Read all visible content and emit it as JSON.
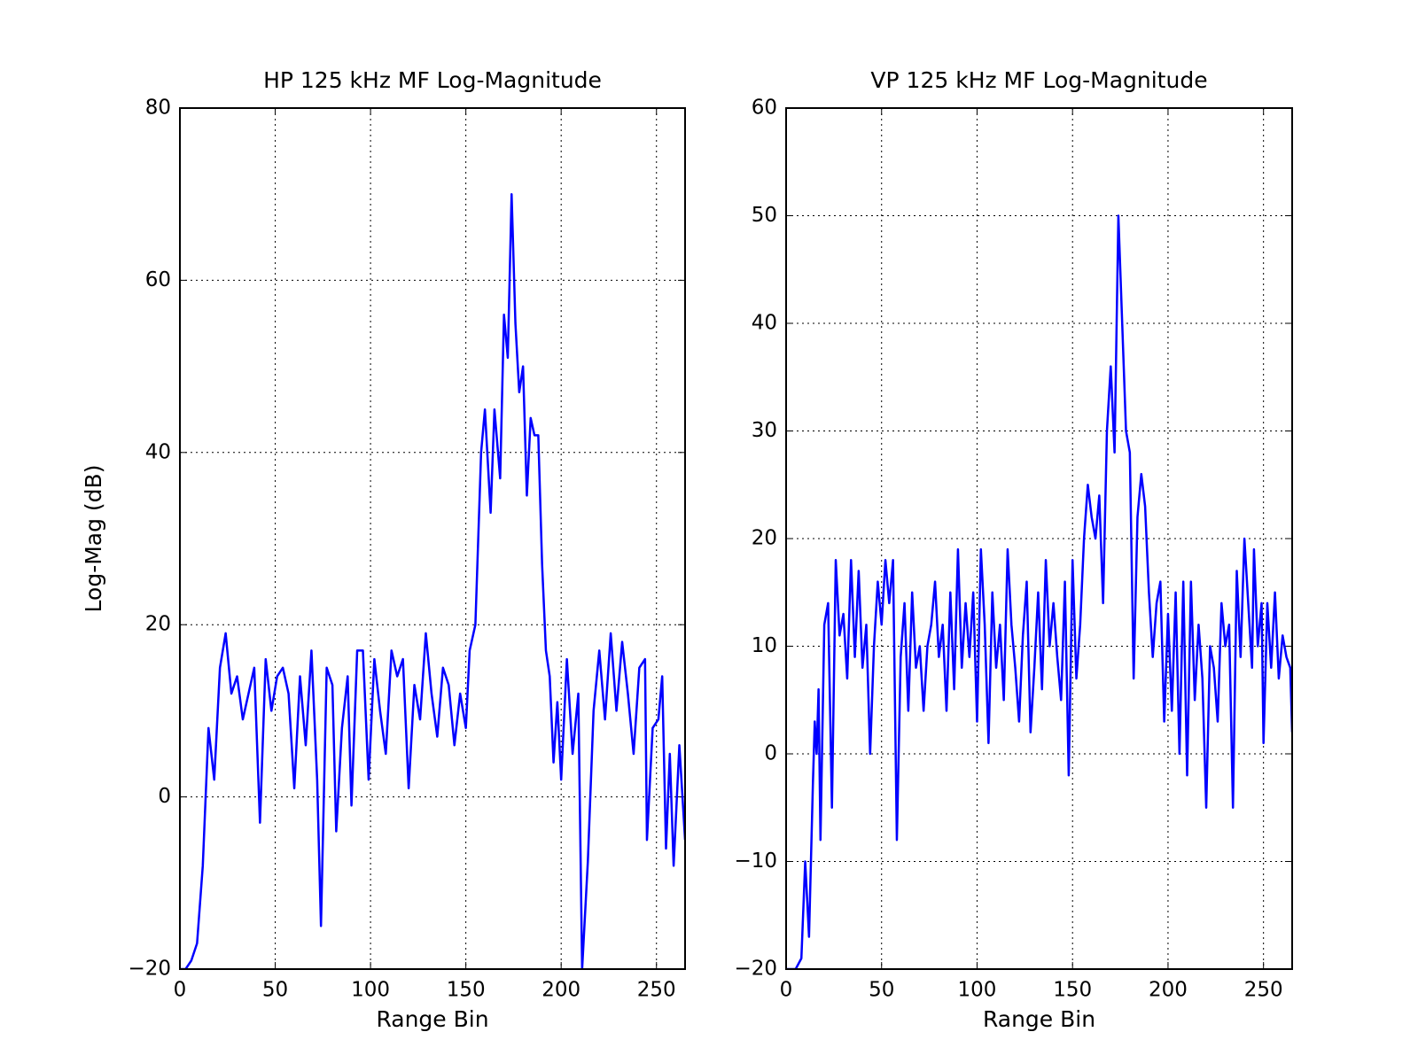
{
  "chart_data": [
    {
      "type": "line",
      "title": "HP 125 kHz MF Log-Magnitude",
      "x_label": "Range Bin",
      "y_label": "Log-Mag (dB)",
      "xlim": [
        0,
        265
      ],
      "ylim": [
        -20,
        80
      ],
      "xticks": [
        0,
        50,
        100,
        150,
        200,
        250
      ],
      "yticks": [
        {
          "value": -20,
          "label": "−20"
        },
        0,
        20,
        40,
        60,
        80
      ],
      "grid": true,
      "color": "#0000ff",
      "x": [
        0,
        3,
        6,
        9,
        12,
        15,
        18,
        21,
        24,
        27,
        30,
        33,
        36,
        39,
        42,
        45,
        48,
        51,
        54,
        57,
        60,
        63,
        66,
        69,
        72,
        74,
        77,
        80,
        82,
        85,
        88,
        90,
        93,
        96,
        99,
        102,
        105,
        108,
        111,
        114,
        117,
        120,
        123,
        126,
        129,
        132,
        135,
        138,
        141,
        144,
        147,
        150,
        152,
        155,
        158,
        160,
        163,
        165,
        168,
        170,
        172,
        174,
        176,
        178,
        180,
        182,
        184,
        186,
        188,
        190,
        192,
        194,
        196,
        198,
        200,
        203,
        206,
        209,
        211,
        214,
        217,
        220,
        223,
        226,
        229,
        232,
        235,
        238,
        241,
        244,
        245,
        248,
        251,
        253,
        255,
        257,
        259,
        262,
        265
      ],
      "values": [
        -20,
        -20,
        -19,
        -17,
        -8,
        8,
        2,
        15,
        19,
        12,
        14,
        9,
        12,
        15,
        -3,
        16,
        10,
        14,
        15,
        12,
        1,
        14,
        6,
        17,
        2,
        -15,
        15,
        13,
        -4,
        8,
        14,
        -1,
        17,
        17,
        2,
        16,
        10,
        5,
        17,
        14,
        16,
        1,
        13,
        9,
        19,
        12,
        7,
        15,
        13,
        6,
        12,
        8,
        17,
        20,
        40,
        45,
        33,
        45,
        37,
        56,
        51,
        70,
        55,
        47,
        50,
        35,
        44,
        42,
        42,
        27,
        17,
        14,
        4,
        11,
        2,
        16,
        5,
        12,
        -20,
        -7.5,
        10,
        17,
        9,
        19,
        10,
        18,
        12,
        5,
        15,
        16,
        -5,
        8,
        9,
        14,
        -6,
        5,
        -8,
        6,
        -5
      ]
    },
    {
      "type": "line",
      "title": "VP 125 kHz MF Log-Magnitude",
      "x_label": "Range Bin",
      "xlim": [
        0,
        265
      ],
      "ylim": [
        -20,
        60
      ],
      "xticks": [
        0,
        50,
        100,
        150,
        200,
        250
      ],
      "yticks": [
        {
          "value": -20,
          "label": "−20"
        },
        {
          "value": -10,
          "label": "−10"
        },
        0,
        10,
        20,
        30,
        40,
        50,
        60
      ],
      "grid": true,
      "color": "#0000ff",
      "x": [
        0,
        5,
        8,
        10,
        12,
        14,
        15,
        16,
        17,
        18,
        20,
        22,
        24,
        26,
        28,
        30,
        32,
        34,
        36,
        38,
        40,
        42,
        44,
        46,
        48,
        50,
        52,
        54,
        56,
        58,
        60,
        62,
        64,
        66,
        68,
        70,
        72,
        74,
        76,
        78,
        80,
        82,
        84,
        86,
        88,
        90,
        92,
        94,
        96,
        98,
        100,
        102,
        104,
        106,
        108,
        110,
        112,
        114,
        116,
        118,
        120,
        122,
        124,
        126,
        128,
        130,
        132,
        134,
        136,
        138,
        140,
        142,
        144,
        146,
        148,
        150,
        152,
        154,
        156,
        158,
        160,
        162,
        164,
        166,
        168,
        170,
        172,
        174,
        176,
        178,
        180,
        182,
        184,
        186,
        188,
        190,
        192,
        194,
        196,
        198,
        200,
        202,
        204,
        206,
        208,
        210,
        212,
        214,
        216,
        218,
        220,
        222,
        224,
        226,
        228,
        230,
        232,
        234,
        236,
        238,
        240,
        242,
        244,
        245,
        247,
        249,
        250,
        252,
        254,
        256,
        258,
        260,
        262,
        264,
        265
      ],
      "values": [
        -20,
        -20,
        -19,
        -10,
        -17,
        -3,
        3,
        0,
        6,
        -8,
        12,
        14,
        -5,
        18,
        11,
        13,
        7,
        18,
        9,
        17,
        8,
        12,
        0,
        10,
        16,
        12,
        18,
        14,
        18,
        -8,
        9,
        14,
        4,
        15,
        8,
        10,
        4,
        10,
        12,
        16,
        9,
        12,
        4,
        15,
        6,
        19,
        8,
        14,
        9,
        15,
        3,
        19,
        12,
        1,
        15,
        8,
        12,
        5,
        19,
        12,
        8,
        3,
        11,
        16,
        2,
        8,
        15,
        6,
        18,
        10,
        14,
        9,
        5,
        16,
        -2,
        18,
        7,
        12,
        20,
        25,
        22,
        20,
        24,
        14,
        30,
        36,
        28,
        50,
        40,
        30,
        28,
        7,
        22,
        26,
        23,
        15,
        9,
        14,
        16,
        3,
        13,
        4,
        15,
        0,
        16,
        -2,
        16,
        5,
        12,
        7,
        -5,
        10,
        8,
        3,
        14,
        10,
        12,
        -5,
        17,
        9,
        20,
        14,
        8,
        19,
        10,
        14,
        1,
        14,
        8,
        15,
        7,
        11,
        9,
        8,
        2
      ]
    }
  ]
}
